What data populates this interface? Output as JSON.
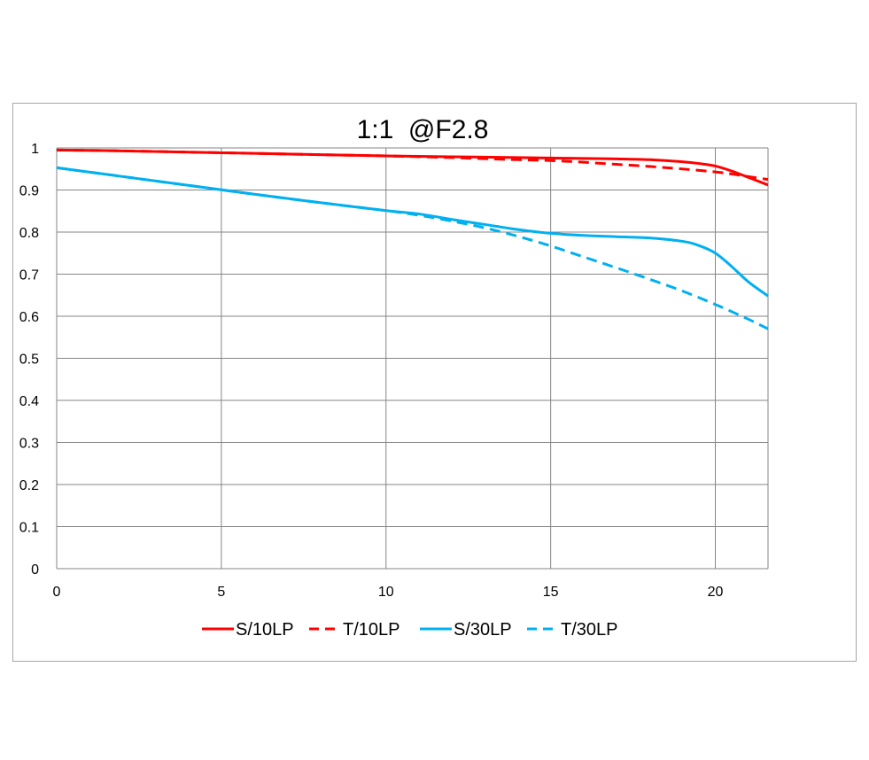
{
  "chart_data": {
    "type": "line",
    "title": "1:1  @F2.8",
    "xlabel": "",
    "ylabel": "",
    "xlim": [
      0,
      21.6
    ],
    "ylim": [
      0,
      1
    ],
    "x_ticks": [
      "0",
      "5",
      "10",
      "15",
      "20"
    ],
    "y_ticks": [
      "0",
      "0.1",
      "0.2",
      "0.3",
      "0.4",
      "0.5",
      "0.6",
      "0.7",
      "0.8",
      "0.9",
      "1"
    ],
    "grid": true,
    "legend_position": "bottom",
    "series": [
      {
        "name": "S/10LP",
        "color": "#ff0000",
        "dash": "solid",
        "x": [
          0,
          2,
          4,
          6,
          8,
          10,
          12,
          14,
          15,
          16,
          17,
          18,
          19,
          19.5,
          20,
          20.5,
          21,
          21.6
        ],
        "y": [
          0.995,
          0.993,
          0.99,
          0.987,
          0.984,
          0.981,
          0.979,
          0.977,
          0.976,
          0.975,
          0.974,
          0.972,
          0.967,
          0.963,
          0.957,
          0.945,
          0.93,
          0.912
        ]
      },
      {
        "name": "T/10LP",
        "color": "#ff0000",
        "dash": "dashed",
        "x": [
          0,
          2,
          4,
          6,
          8,
          10,
          12,
          14,
          15,
          16,
          17,
          18,
          19,
          20,
          20.5,
          21,
          21.6
        ],
        "y": [
          0.995,
          0.993,
          0.99,
          0.987,
          0.984,
          0.981,
          0.977,
          0.972,
          0.97,
          0.966,
          0.961,
          0.956,
          0.95,
          0.943,
          0.938,
          0.932,
          0.925
        ]
      },
      {
        "name": "S/30LP",
        "color": "#00b0f0",
        "dash": "solid",
        "x": [
          0,
          2,
          4,
          6,
          8,
          10,
          11,
          12,
          13,
          14,
          15,
          16,
          17,
          18,
          19,
          19.5,
          20,
          20.5,
          21,
          21.6
        ],
        "y": [
          0.953,
          0.932,
          0.911,
          0.89,
          0.87,
          0.851,
          0.843,
          0.83,
          0.818,
          0.806,
          0.797,
          0.792,
          0.789,
          0.786,
          0.778,
          0.768,
          0.75,
          0.718,
          0.682,
          0.648
        ]
      },
      {
        "name": "T/30LP",
        "color": "#00b0f0",
        "dash": "dashed",
        "x": [
          0,
          2,
          4,
          6,
          8,
          10,
          11,
          12,
          13,
          14,
          15,
          16,
          17,
          18,
          19,
          20,
          21,
          21.6
        ],
        "y": [
          0.953,
          0.932,
          0.911,
          0.89,
          0.87,
          0.851,
          0.84,
          0.826,
          0.81,
          0.79,
          0.767,
          0.741,
          0.715,
          0.688,
          0.66,
          0.628,
          0.593,
          0.57
        ]
      }
    ]
  }
}
